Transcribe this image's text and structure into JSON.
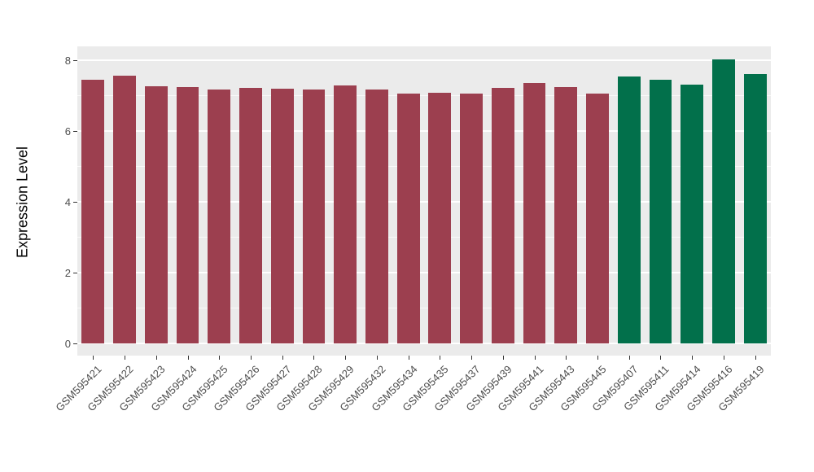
{
  "chart_data": {
    "type": "bar",
    "title": "",
    "xlabel": "",
    "ylabel": "Expression Level",
    "ylim": [
      0,
      8
    ],
    "yticks": [
      0,
      2,
      4,
      6,
      8
    ],
    "minor_gridlines": [
      1,
      3,
      5,
      7
    ],
    "grid": "on",
    "legend": "none",
    "panel_background": "#EBEBEB",
    "gridline_color": "#FFFFFF",
    "categories": [
      "GSM595421",
      "GSM595422",
      "GSM595423",
      "GSM595424",
      "GSM595425",
      "GSM595426",
      "GSM595427",
      "GSM595428",
      "GSM595429",
      "GSM595432",
      "GSM595434",
      "GSM595435",
      "GSM595437",
      "GSM595439",
      "GSM595441",
      "GSM595443",
      "GSM595445",
      "GSM595407",
      "GSM595411",
      "GSM595414",
      "GSM595416",
      "GSM595419"
    ],
    "values": [
      7.45,
      7.56,
      7.26,
      7.23,
      7.18,
      7.22,
      7.19,
      7.17,
      7.29,
      7.18,
      7.05,
      7.08,
      7.05,
      7.21,
      7.35,
      7.25,
      7.05,
      7.53,
      7.44,
      7.32,
      8.02,
      7.62
    ],
    "colors": [
      "#9C3F4F",
      "#9C3F4F",
      "#9C3F4F",
      "#9C3F4F",
      "#9C3F4F",
      "#9C3F4F",
      "#9C3F4F",
      "#9C3F4F",
      "#9C3F4F",
      "#9C3F4F",
      "#9C3F4F",
      "#9C3F4F",
      "#9C3F4F",
      "#9C3F4F",
      "#9C3F4F",
      "#9C3F4F",
      "#9C3F4F",
      "#02704B",
      "#02704B",
      "#02704B",
      "#02704B",
      "#02704B"
    ]
  }
}
